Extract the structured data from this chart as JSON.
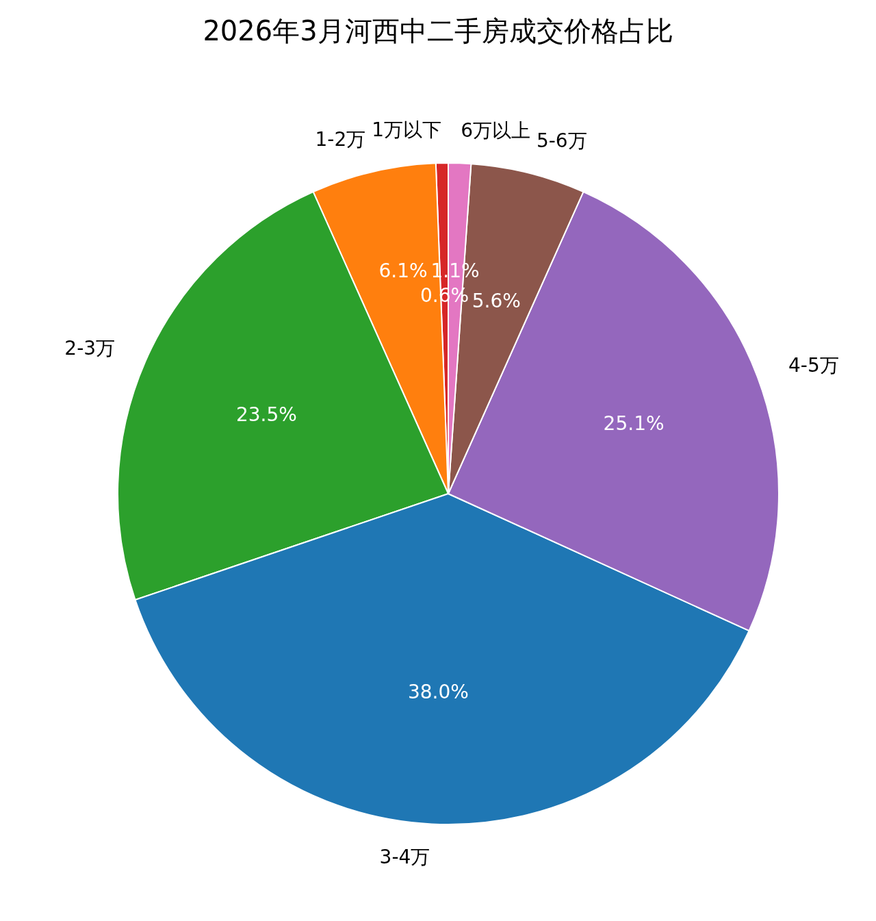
{
  "chart_data": {
    "type": "pie",
    "title": "2026年3月河西中二手房成交价格占比",
    "categories": [
      "1万以下",
      "1-2万",
      "2-3万",
      "3-4万",
      "4-5万",
      "5-6万",
      "6万以上"
    ],
    "values": [
      0.6,
      6.1,
      23.5,
      38.0,
      25.1,
      5.6,
      1.1
    ],
    "value_labels": [
      "0.6%",
      "6.1%",
      "23.5%",
      "38.0%",
      "25.1%",
      "5.6%",
      "1.1%"
    ],
    "colors": [
      "#d62728",
      "#ff7f0e",
      "#2ca02c",
      "#1f77b4",
      "#9467bd",
      "#8c564b",
      "#e377c2"
    ]
  }
}
